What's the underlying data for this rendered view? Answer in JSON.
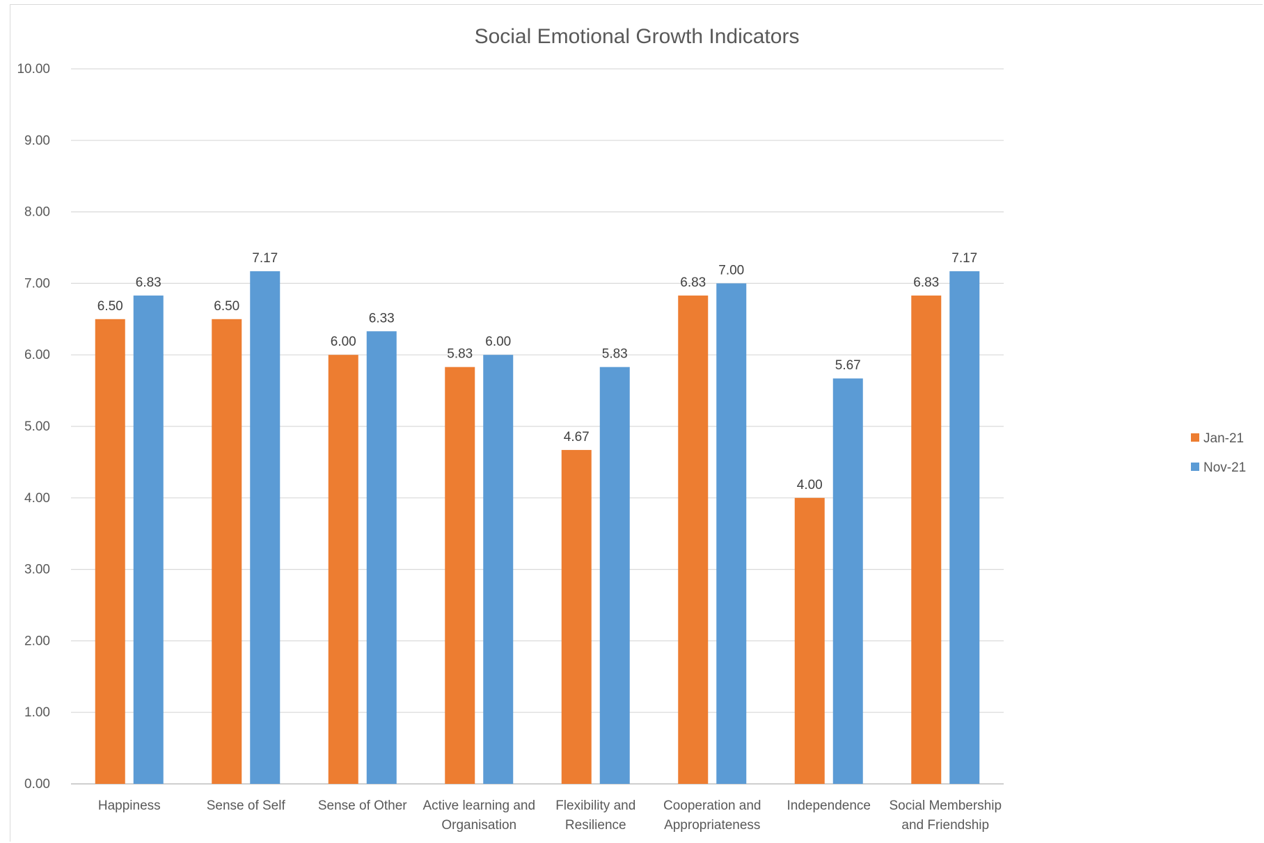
{
  "chart_data": {
    "type": "bar",
    "title": "Social Emotional Growth Indicators",
    "xlabel": "",
    "ylabel": "",
    "ylim": [
      0,
      10
    ],
    "y_ticks": [
      "0.00",
      "1.00",
      "2.00",
      "3.00",
      "4.00",
      "5.00",
      "6.00",
      "7.00",
      "8.00",
      "9.00",
      "10.00"
    ],
    "grid": true,
    "legend_position": "right",
    "categories": [
      [
        "Happiness"
      ],
      [
        "Sense of Self"
      ],
      [
        "Sense of Other"
      ],
      [
        "Active learning and",
        "Organisation"
      ],
      [
        "Flexibility and",
        "Resilience"
      ],
      [
        "Cooperation and",
        "Appropriateness"
      ],
      [
        "Independence"
      ],
      [
        "Social Membership",
        "and Friendship"
      ]
    ],
    "series": [
      {
        "name": "Jan-21",
        "color": "#ed7d31",
        "values": [
          6.5,
          6.5,
          6.0,
          5.83,
          4.67,
          6.83,
          4.0,
          6.83
        ],
        "labels": [
          "6.50",
          "6.50",
          "6.00",
          "5.83",
          "4.67",
          "6.83",
          "4.00",
          "6.83"
        ]
      },
      {
        "name": "Nov-21",
        "color": "#5b9bd5",
        "values": [
          6.83,
          7.17,
          6.33,
          6.0,
          5.83,
          7.0,
          5.67,
          7.17
        ],
        "labels": [
          "6.83",
          "7.17",
          "6.33",
          "6.00",
          "5.83",
          "7.00",
          "5.67",
          "7.17"
        ]
      }
    ]
  }
}
